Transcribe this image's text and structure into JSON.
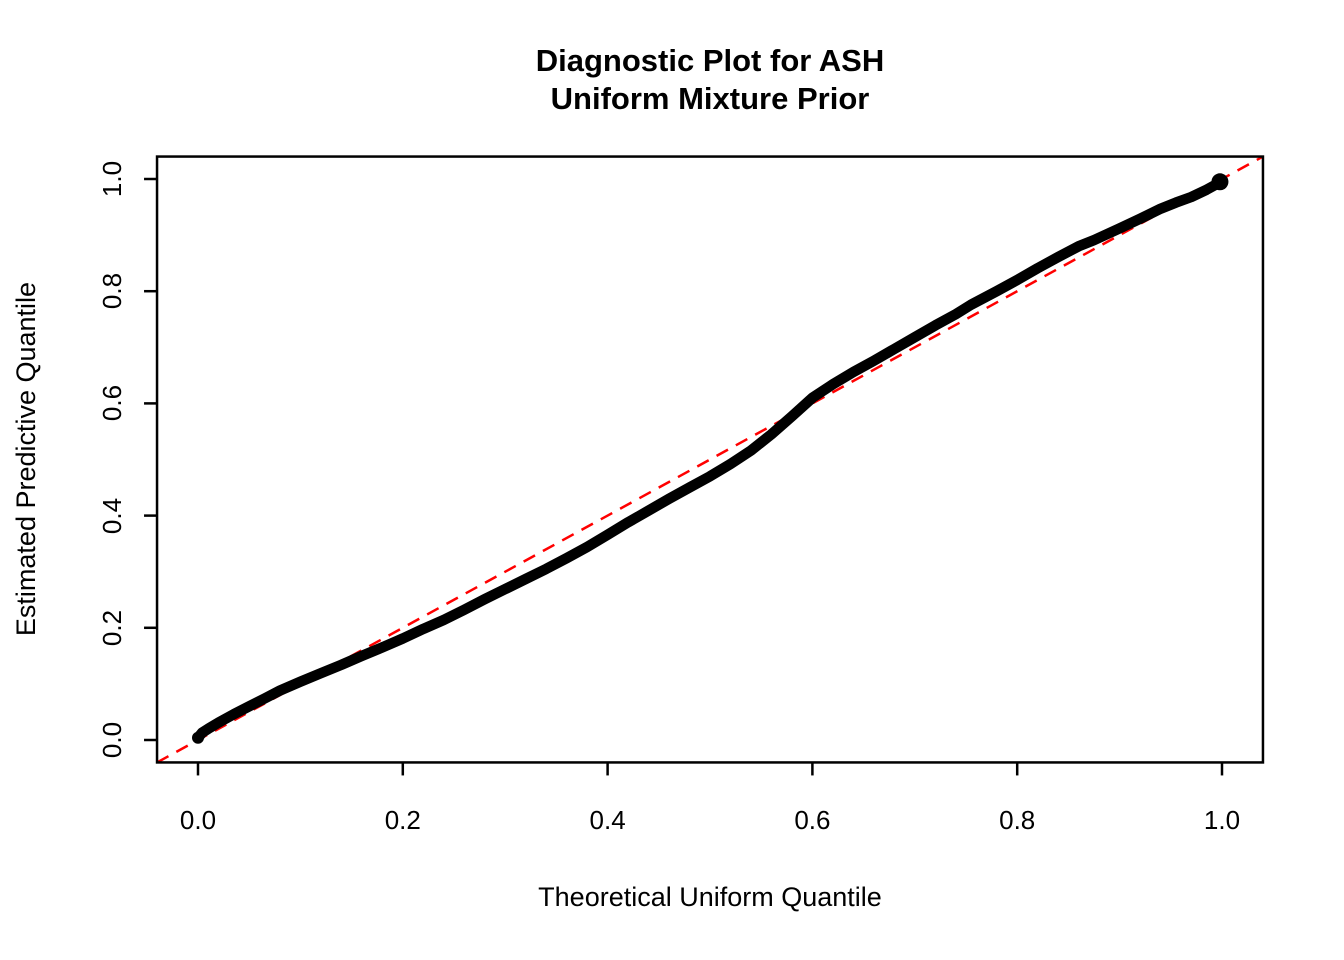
{
  "title": {
    "line1": "Diagnostic Plot for ASH",
    "line2": "Uniform Mixture Prior"
  },
  "axes": {
    "x": {
      "label": "Theoretical Uniform Quantile"
    },
    "y": {
      "label": "Estimated Predictive Quantile"
    }
  },
  "colors": {
    "background": "#ffffff",
    "frame": "#000000",
    "curve": "#000000",
    "reference_line": "#ff0000"
  },
  "chart_data": {
    "type": "line",
    "title": "Diagnostic Plot for ASH\nUniform Mixture Prior",
    "xlabel": "Theoretical Uniform Quantile",
    "ylabel": "Estimated Predictive Quantile",
    "xlim": [
      -0.04,
      1.04
    ],
    "ylim": [
      -0.04,
      1.04
    ],
    "grid": false,
    "legend": "none",
    "x_ticks": [
      0.0,
      0.2,
      0.4,
      0.6,
      0.8,
      1.0
    ],
    "y_ticks": [
      0.0,
      0.2,
      0.4,
      0.6,
      0.8,
      1.0
    ],
    "x_tick_labels": [
      "0.0",
      "0.2",
      "0.4",
      "0.6",
      "0.8",
      "1.0"
    ],
    "y_tick_labels": [
      "0.0",
      "0.2",
      "0.4",
      "0.6",
      "0.8",
      "1.0"
    ],
    "series": [
      {
        "name": "estimated-predictive-quantile-curve",
        "style": "thick-point-line",
        "color": "#000000",
        "points": [
          [
            0.0,
            0.004
          ],
          [
            0.004,
            0.013
          ],
          [
            0.01,
            0.02
          ],
          [
            0.02,
            0.031
          ],
          [
            0.035,
            0.046
          ],
          [
            0.05,
            0.06
          ],
          [
            0.065,
            0.074
          ],
          [
            0.08,
            0.088
          ],
          [
            0.1,
            0.104
          ],
          [
            0.12,
            0.119
          ],
          [
            0.14,
            0.134
          ],
          [
            0.16,
            0.15
          ],
          [
            0.18,
            0.165
          ],
          [
            0.2,
            0.181
          ],
          [
            0.22,
            0.198
          ],
          [
            0.24,
            0.214
          ],
          [
            0.26,
            0.232
          ],
          [
            0.28,
            0.251
          ],
          [
            0.3,
            0.269
          ],
          [
            0.32,
            0.287
          ],
          [
            0.34,
            0.305
          ],
          [
            0.36,
            0.324
          ],
          [
            0.38,
            0.344
          ],
          [
            0.4,
            0.366
          ],
          [
            0.42,
            0.388
          ],
          [
            0.44,
            0.409
          ],
          [
            0.46,
            0.43
          ],
          [
            0.48,
            0.45
          ],
          [
            0.5,
            0.47
          ],
          [
            0.52,
            0.492
          ],
          [
            0.54,
            0.516
          ],
          [
            0.56,
            0.545
          ],
          [
            0.58,
            0.577
          ],
          [
            0.6,
            0.61
          ],
          [
            0.62,
            0.634
          ],
          [
            0.64,
            0.656
          ],
          [
            0.66,
            0.676
          ],
          [
            0.68,
            0.697
          ],
          [
            0.7,
            0.718
          ],
          [
            0.72,
            0.739
          ],
          [
            0.74,
            0.759
          ],
          [
            0.755,
            0.776
          ],
          [
            0.78,
            0.8
          ],
          [
            0.8,
            0.82
          ],
          [
            0.82,
            0.841
          ],
          [
            0.84,
            0.861
          ],
          [
            0.86,
            0.88
          ],
          [
            0.875,
            0.891
          ],
          [
            0.9,
            0.912
          ],
          [
            0.92,
            0.929
          ],
          [
            0.94,
            0.947
          ],
          [
            0.955,
            0.958
          ],
          [
            0.97,
            0.968
          ],
          [
            0.985,
            0.981
          ],
          [
            0.993,
            0.989
          ],
          [
            0.998,
            0.995
          ]
        ]
      },
      {
        "name": "identity-reference-line",
        "style": "dashed",
        "color": "#ff0000",
        "points": [
          [
            -0.04,
            -0.04
          ],
          [
            1.04,
            1.04
          ]
        ]
      }
    ]
  }
}
